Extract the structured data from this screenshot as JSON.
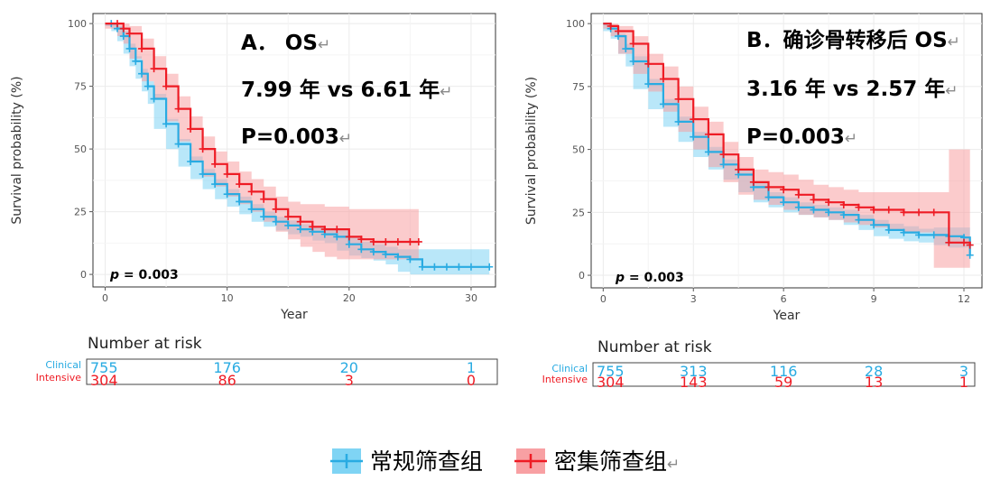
{
  "colors": {
    "clinical": "#29ABE2",
    "clinical_band": "#7FD4F4",
    "intensive": "#EE1C25",
    "intensive_band": "#F8A0A3"
  },
  "legend": {
    "clinical_label": "常规筛查组",
    "intensive_label": "密集筛查组",
    "return_mark": "↵"
  },
  "chart_data": [
    {
      "type": "line",
      "panel": "A",
      "annotation": {
        "line1": "A．  OS",
        "line2": "7.99 年  vs 6.61 年",
        "line3": "P=0.003"
      },
      "p_value_label": "p = 0.003",
      "xlabel": "Year",
      "ylabel": "Survival probability (%)",
      "xlim": [
        -1,
        32
      ],
      "ylim": [
        -5,
        104
      ],
      "xticks": [
        0,
        10,
        20,
        30
      ],
      "yticks": [
        0,
        25,
        50,
        75,
        100
      ],
      "grid": true,
      "series": [
        {
          "key": "clinical",
          "x": [
            0,
            0.5,
            1,
            1.5,
            2,
            2.5,
            3,
            3.5,
            4,
            5,
            6,
            7,
            8,
            9,
            10,
            11,
            12,
            13,
            14,
            15,
            16,
            17,
            18,
            19,
            20,
            21,
            22,
            23,
            24,
            25,
            26,
            27,
            28,
            29,
            30,
            31.5
          ],
          "values": [
            100,
            100,
            98,
            95,
            90,
            85,
            80,
            75,
            70,
            60,
            52,
            45,
            40,
            36,
            32,
            29,
            26,
            23,
            21,
            19.5,
            18,
            17,
            16,
            15,
            12,
            10,
            9,
            8,
            7,
            6,
            3,
            3,
            3,
            3,
            3,
            3
          ],
          "band_upper": [
            100,
            100,
            99,
            97,
            92,
            87,
            82,
            77,
            72,
            62,
            54,
            47,
            42,
            38,
            34,
            31,
            28,
            25,
            23,
            21.5,
            20,
            19,
            18.5,
            17.5,
            15,
            13,
            12,
            11,
            10,
            10,
            10,
            10,
            10,
            10,
            10,
            10
          ],
          "band_lower": [
            100,
            99,
            97,
            93,
            88,
            83,
            78,
            73,
            68,
            58,
            50,
            43,
            38,
            34,
            30,
            27,
            24,
            21,
            19,
            17.5,
            16,
            15,
            13.5,
            12.5,
            9.5,
            7.5,
            6.5,
            5.5,
            4,
            1,
            0,
            0,
            0,
            0,
            0,
            0
          ]
        },
        {
          "key": "intensive",
          "x": [
            0,
            1,
            1.5,
            2,
            3,
            4,
            5,
            6,
            7,
            8,
            9,
            10,
            11,
            12,
            13,
            14,
            15,
            16,
            17,
            18,
            19,
            20,
            21,
            22,
            23,
            24,
            25,
            25.7
          ],
          "values": [
            100,
            100,
            98,
            96,
            90,
            82,
            75,
            66,
            58,
            50,
            44,
            40,
            36,
            33,
            30,
            26,
            23,
            21,
            19,
            18,
            18,
            15,
            14,
            13,
            13,
            13,
            13,
            13
          ],
          "band_upper": [
            100,
            100,
            100,
            99,
            94,
            87,
            80,
            71,
            63,
            55,
            49,
            45,
            41,
            38,
            35,
            31,
            29,
            28,
            28,
            27,
            27,
            26,
            26,
            26,
            26,
            26,
            26,
            26
          ],
          "band_lower": [
            100,
            98,
            95,
            92,
            86,
            77,
            70,
            61,
            53,
            45,
            39,
            35,
            31,
            28,
            25,
            21,
            17,
            14,
            11,
            9,
            7,
            6,
            6,
            6,
            6,
            6,
            6,
            6
          ]
        }
      ],
      "risk_table": {
        "title": "Number at risk",
        "row_labels": [
          "Clinical",
          "Intensive"
        ],
        "times": [
          0,
          10,
          20,
          30
        ],
        "rows": [
          [
            "755",
            "176",
            "20",
            "1"
          ],
          [
            "304",
            "86",
            "3",
            "0"
          ]
        ]
      }
    },
    {
      "type": "line",
      "panel": "B",
      "annotation": {
        "line1": "B．确诊骨转移后 OS",
        "line2": "3.16 年  vs 2.57 年",
        "line3": "P=0.003"
      },
      "p_value_label": "p = 0.003",
      "xlabel": "Year",
      "ylabel": "Survival probability (%)",
      "xlim": [
        -0.4,
        12.6
      ],
      "ylim": [
        -5,
        104
      ],
      "xticks": [
        0,
        3,
        6,
        9,
        12
      ],
      "yticks": [
        0,
        25,
        50,
        75,
        100
      ],
      "grid": true,
      "series": [
        {
          "key": "clinical",
          "x": [
            0,
            0.25,
            0.5,
            0.75,
            1,
            1.5,
            2,
            2.5,
            3,
            3.5,
            4,
            4.5,
            5,
            5.5,
            6,
            6.5,
            7,
            7.5,
            8,
            8.5,
            9,
            9.5,
            10,
            10.5,
            11,
            11.5,
            12,
            12.2
          ],
          "values": [
            100,
            98,
            95,
            90,
            85,
            76,
            68,
            61,
            55,
            49,
            44,
            40,
            35,
            31,
            29,
            27,
            26,
            25,
            24,
            22,
            20,
            18,
            17,
            16,
            16,
            15.5,
            15,
            8
          ],
          "band_upper": [
            100,
            99,
            96,
            92,
            87,
            78,
            70,
            63,
            57,
            51,
            46,
            42,
            37,
            33,
            31,
            29,
            28,
            27,
            26,
            24,
            22,
            20.5,
            19.5,
            18.5,
            19,
            19,
            19,
            19
          ],
          "band_lower": [
            100,
            97,
            94,
            88,
            83,
            74,
            66,
            59,
            53,
            47,
            42,
            38,
            33,
            29,
            27,
            25,
            24,
            23,
            22,
            20,
            18,
            15.5,
            14.5,
            13.5,
            13,
            12,
            11,
            11
          ]
        },
        {
          "key": "intensive",
          "x": [
            0,
            0.25,
            0.5,
            1,
            1.5,
            2,
            2.5,
            3,
            3.5,
            4,
            4.5,
            5,
            5.5,
            6,
            6.5,
            7,
            7.5,
            8,
            8.5,
            9,
            9.5,
            10,
            10.5,
            11,
            11.5,
            12,
            12.2
          ],
          "values": [
            100,
            99,
            97,
            92,
            84,
            78,
            70,
            62,
            56,
            48,
            42,
            37,
            35,
            34,
            32,
            30,
            29,
            28,
            27,
            26,
            26,
            25,
            25,
            25,
            13,
            13,
            12
          ],
          "band_upper": [
            100,
            100,
            99,
            95,
            88,
            83,
            75,
            67,
            61,
            53,
            47,
            42,
            41,
            40,
            38,
            36,
            35,
            34,
            33,
            33,
            33,
            33,
            33,
            33,
            50,
            50,
            50
          ],
          "band_lower": [
            100,
            98,
            95,
            88,
            80,
            73,
            65,
            57,
            50,
            43,
            37,
            32,
            30,
            28,
            26,
            24,
            23,
            22,
            21,
            20,
            19,
            18,
            17,
            17,
            3,
            3,
            3
          ]
        }
      ],
      "risk_table": {
        "title": "Number at risk",
        "row_labels": [
          "Clinical",
          "Intensive"
        ],
        "times": [
          0,
          3,
          6,
          9,
          12
        ],
        "rows": [
          [
            "755",
            "313",
            "116",
            "28",
            "3"
          ],
          [
            "304",
            "143",
            "59",
            "13",
            "1"
          ]
        ]
      }
    }
  ]
}
